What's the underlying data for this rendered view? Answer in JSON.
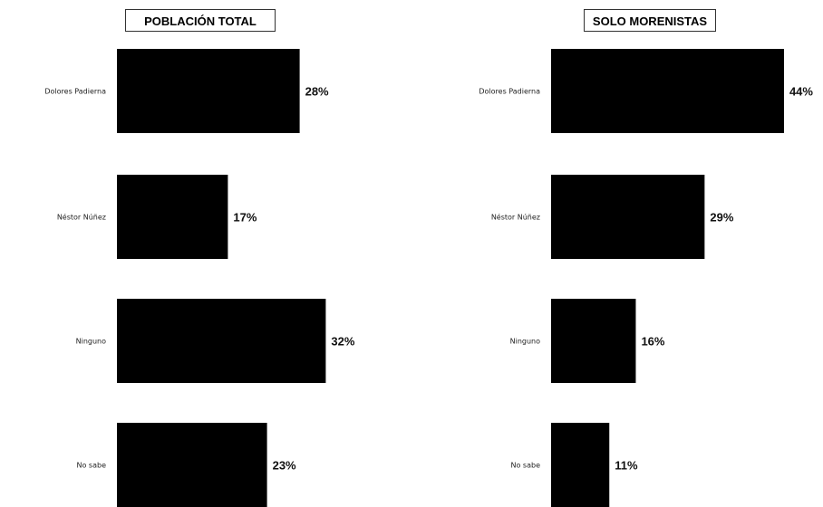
{
  "chart_data": [
    {
      "type": "bar",
      "orientation": "horizontal",
      "title": "POBLACIÓN TOTAL",
      "categories": [
        "Dolores Padierna",
        "Néstor Núñez",
        "Ninguno",
        "No sabe"
      ],
      "values": [
        28,
        17,
        32,
        23
      ],
      "value_labels": [
        "28%",
        "17%",
        "32%",
        "23%"
      ],
      "bar_color": "#000000",
      "xlim": [
        0,
        44
      ],
      "grid": false
    },
    {
      "type": "bar",
      "orientation": "horizontal",
      "title": "SOLO MORENISTAS",
      "categories": [
        "Dolores Padierna",
        "Néstor Núñez",
        "Ninguno",
        "No sabe"
      ],
      "values": [
        44,
        29,
        16,
        11
      ],
      "value_labels": [
        "44%",
        "29%",
        "16%",
        "11%"
      ],
      "bar_color": "#000000",
      "xlim": [
        0,
        44
      ],
      "grid": false
    }
  ]
}
